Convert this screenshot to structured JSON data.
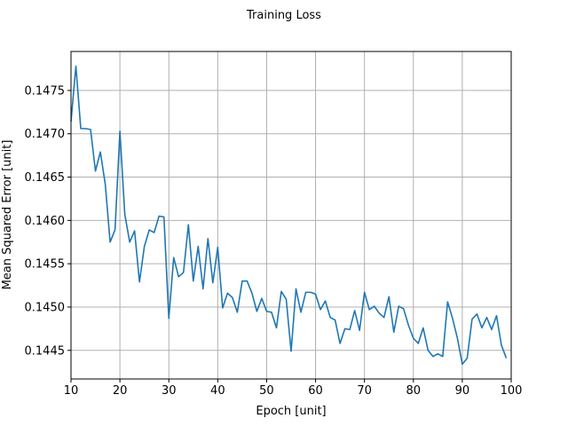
{
  "chart_data": {
    "type": "line",
    "title": "Training Loss",
    "xlabel": "Epoch [unit]",
    "ylabel": "Mean Squared Error [unit]",
    "xlim": [
      10,
      100
    ],
    "ylim": [
      0.14417,
      0.14795
    ],
    "grid": true,
    "x_ticks": [
      10,
      20,
      30,
      40,
      50,
      60,
      70,
      80,
      90,
      100
    ],
    "y_ticks": [
      0.1445,
      0.145,
      0.1455,
      0.146,
      0.1465,
      0.147,
      0.1475
    ],
    "y_tick_labels": [
      "0.1445",
      "0.1450",
      "0.1455",
      "0.1460",
      "0.1465",
      "0.1470",
      "0.1475"
    ],
    "series": [
      {
        "color": "#1f77b4",
        "x": [
          10,
          11,
          12,
          13,
          14,
          15,
          16,
          17,
          18,
          19,
          20,
          21,
          22,
          23,
          24,
          25,
          26,
          27,
          28,
          29,
          30,
          31,
          32,
          33,
          34,
          35,
          36,
          37,
          38,
          39,
          40,
          41,
          42,
          43,
          44,
          45,
          46,
          47,
          48,
          49,
          50,
          51,
          52,
          53,
          54,
          55,
          56,
          57,
          58,
          59,
          60,
          61,
          62,
          63,
          64,
          65,
          66,
          67,
          68,
          69,
          70,
          71,
          72,
          73,
          74,
          75,
          76,
          77,
          78,
          79,
          80,
          81,
          82,
          83,
          84,
          85,
          86,
          87,
          88,
          89,
          90,
          91,
          92,
          93,
          94,
          95,
          96,
          97,
          98,
          99
        ],
        "y": [
          0.14714,
          0.14778,
          0.14706,
          0.14706,
          0.14705,
          0.14657,
          0.14679,
          0.14642,
          0.14575,
          0.14589,
          0.14703,
          0.14607,
          0.14575,
          0.14588,
          0.14529,
          0.1457,
          0.14589,
          0.14586,
          0.14605,
          0.14604,
          0.14487,
          0.14557,
          0.14535,
          0.1454,
          0.14595,
          0.1453,
          0.1457,
          0.14521,
          0.14579,
          0.14528,
          0.14569,
          0.14499,
          0.14516,
          0.14511,
          0.14494,
          0.1453,
          0.1453,
          0.14516,
          0.14495,
          0.1451,
          0.14495,
          0.14494,
          0.14476,
          0.14518,
          0.14509,
          0.14449,
          0.14521,
          0.14494,
          0.14517,
          0.14517,
          0.14515,
          0.14497,
          0.14507,
          0.14488,
          0.14485,
          0.14458,
          0.14475,
          0.14474,
          0.14496,
          0.14473,
          0.14517,
          0.14497,
          0.14501,
          0.14493,
          0.14488,
          0.14512,
          0.14471,
          0.14501,
          0.14498,
          0.14479,
          0.14464,
          0.14458,
          0.14476,
          0.1445,
          0.14443,
          0.14446,
          0.14443,
          0.14506,
          0.14487,
          0.14464,
          0.14434,
          0.14441,
          0.14486,
          0.14492,
          0.14476,
          0.14488,
          0.14474,
          0.1449,
          0.14456,
          0.14441
        ]
      }
    ]
  }
}
